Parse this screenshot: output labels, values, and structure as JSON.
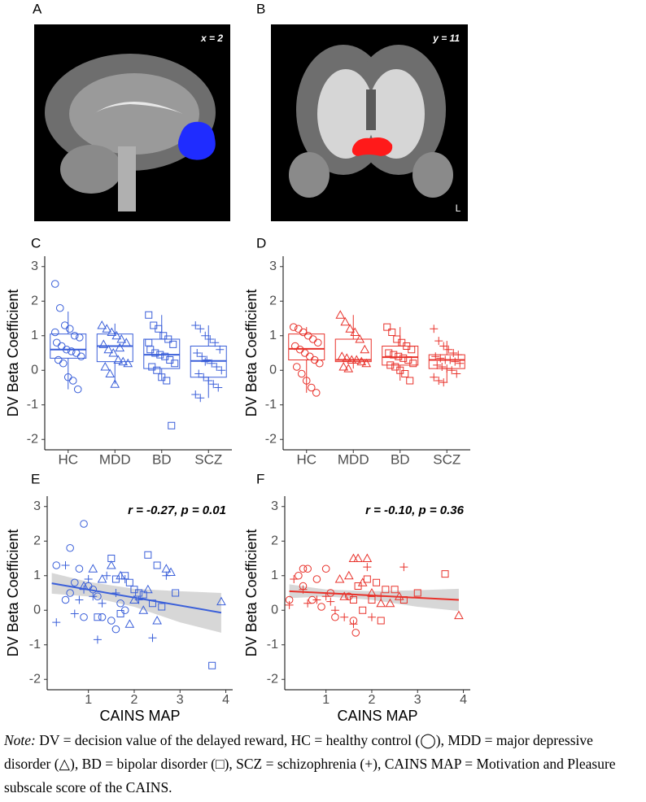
{
  "images": [
    {
      "panel": "A",
      "annotation": "x = 2"
    },
    {
      "panel": "B",
      "annotation": "y = 11",
      "side_label": "L"
    }
  ],
  "chart_data": [
    {
      "type": "box",
      "panel": "C",
      "color": "#3a5fd9",
      "ylabel": "DV Beta Coefficient",
      "categories": [
        "HC",
        "MDD",
        "BD",
        "SCZ"
      ],
      "markers": [
        "circle",
        "triangle",
        "square",
        "plus"
      ],
      "boxes": [
        {
          "whisker_low": -0.55,
          "q1": 0.35,
          "median": 0.6,
          "q3": 1.05,
          "whisker_high": 1.7
        },
        {
          "whisker_low": -0.4,
          "q1": 0.25,
          "median": 0.7,
          "q3": 1.05,
          "whisker_high": 1.35
        },
        {
          "whisker_low": -0.3,
          "q1": 0.05,
          "median": 0.45,
          "q3": 0.9,
          "whisker_high": 1.6
        },
        {
          "whisker_low": -0.8,
          "q1": -0.2,
          "median": 0.27,
          "q3": 0.7,
          "whisker_high": 1.3
        }
      ],
      "points": [
        [
          2.5,
          1.8,
          1.3,
          1.2,
          1.0,
          0.95,
          0.8,
          0.7,
          0.6,
          0.55,
          0.5,
          0.4,
          0.3,
          0.2,
          -0.2,
          -0.3,
          -0.55,
          1.1
        ],
        [
          1.3,
          1.2,
          1.1,
          1.0,
          0.9,
          0.8,
          0.75,
          0.6,
          0.5,
          0.3,
          0.25,
          0.2,
          0.1,
          -0.1,
          -0.4,
          0.65
        ],
        [
          1.6,
          1.3,
          1.2,
          1.0,
          0.9,
          0.75,
          0.6,
          0.5,
          0.45,
          0.4,
          0.3,
          0.2,
          0.1,
          0.0,
          -0.2,
          -0.3,
          -1.6,
          0.8
        ],
        [
          1.3,
          1.2,
          1.0,
          0.9,
          0.8,
          0.6,
          0.5,
          0.4,
          0.3,
          0.2,
          0.1,
          0.0,
          -0.1,
          -0.2,
          -0.3,
          -0.4,
          -0.5,
          -0.7,
          -0.8,
          0.25
        ]
      ],
      "ylim": [
        -2.3,
        3.3
      ],
      "yticks": [
        -2,
        -1,
        0,
        1,
        2,
        3
      ]
    },
    {
      "type": "box",
      "panel": "D",
      "color": "#e8322b",
      "ylabel": "DV Beta Coefficient",
      "categories": [
        "HC",
        "MDD",
        "BD",
        "SCZ"
      ],
      "markers": [
        "circle",
        "triangle",
        "square",
        "plus"
      ],
      "boxes": [
        {
          "whisker_low": -0.65,
          "q1": 0.3,
          "median": 0.62,
          "q3": 1.05,
          "whisker_high": 1.25
        },
        {
          "whisker_low": 0.05,
          "q1": 0.25,
          "median": 0.3,
          "q3": 0.9,
          "whisker_high": 1.6
        },
        {
          "whisker_low": -0.3,
          "q1": 0.15,
          "median": 0.38,
          "q3": 0.7,
          "whisker_high": 1.25
        },
        {
          "whisker_low": -0.35,
          "q1": 0.05,
          "median": 0.3,
          "q3": 0.45,
          "whisker_high": 0.85
        }
      ],
      "points": [
        [
          1.25,
          1.2,
          1.1,
          1.0,
          0.9,
          0.8,
          0.7,
          0.6,
          0.5,
          0.4,
          0.3,
          0.2,
          0.1,
          -0.1,
          -0.3,
          -0.5,
          -0.65
        ],
        [
          1.6,
          1.4,
          1.2,
          1.1,
          0.9,
          0.6,
          0.4,
          0.35,
          0.3,
          0.3,
          0.25,
          0.2,
          0.1,
          0.05
        ],
        [
          1.25,
          1.1,
          0.9,
          0.8,
          0.7,
          0.6,
          0.5,
          0.45,
          0.4,
          0.35,
          0.3,
          0.2,
          0.15,
          0.1,
          0.0,
          -0.1,
          -0.3
        ],
        [
          1.2,
          0.85,
          0.7,
          0.6,
          0.5,
          0.45,
          0.4,
          0.35,
          0.3,
          0.3,
          0.25,
          0.2,
          0.15,
          0.1,
          0.05,
          0.0,
          -0.1,
          -0.2,
          -0.3,
          -0.35
        ]
      ],
      "ylim": [
        -2.3,
        3.3
      ],
      "yticks": [
        -2,
        -1,
        0,
        1,
        2,
        3
      ]
    },
    {
      "type": "scatter",
      "panel": "E",
      "color": "#3a5fd9",
      "ylabel": "DV Beta Coefficient",
      "xlabel": "CAINS MAP",
      "annotation": "r = -0.27, p = 0.01",
      "series": [
        {
          "marker": "circle",
          "x": [
            0.3,
            0.5,
            0.6,
            0.7,
            0.8,
            0.9,
            1.0,
            1.1,
            1.2,
            1.3,
            1.5,
            1.6,
            1.7,
            1.8,
            0.9,
            0.6
          ],
          "values": [
            1.3,
            0.3,
            1.8,
            0.8,
            1.2,
            2.5,
            0.7,
            0.6,
            0.4,
            -0.2,
            -0.3,
            -0.55,
            0.2,
            0.0,
            -0.2,
            0.5
          ]
        },
        {
          "marker": "triangle",
          "x": [
            0.9,
            1.1,
            1.3,
            1.5,
            1.7,
            2.0,
            2.2,
            2.5,
            2.7,
            2.8,
            3.9,
            2.3,
            1.9
          ],
          "values": [
            0.7,
            1.2,
            0.9,
            1.3,
            1.0,
            0.3,
            0.0,
            -0.3,
            1.2,
            1.1,
            0.25,
            0.6,
            -0.4
          ]
        },
        {
          "marker": "square",
          "x": [
            1.5,
            1.6,
            1.8,
            1.9,
            2.0,
            2.1,
            2.3,
            2.4,
            2.5,
            2.6,
            2.9,
            3.7,
            1.7,
            2.2,
            1.2
          ],
          "values": [
            1.5,
            0.9,
            1.0,
            0.8,
            0.6,
            0.5,
            1.6,
            0.2,
            1.3,
            0.1,
            0.5,
            -1.6,
            -0.1,
            0.45,
            -0.2
          ]
        },
        {
          "marker": "plus",
          "x": [
            0.3,
            0.5,
            0.7,
            0.8,
            1.0,
            1.1,
            1.2,
            1.4,
            1.6,
            1.8,
            2.1,
            2.4,
            2.7,
            1.3,
            0.9
          ],
          "values": [
            -0.35,
            1.3,
            -0.1,
            0.3,
            0.9,
            0.4,
            -0.85,
            1.0,
            0.5,
            0.9,
            0.3,
            -0.8,
            1.0,
            0.2,
            0.6
          ]
        }
      ],
      "fit": {
        "x": [
          0.2,
          3.9
        ],
        "values": [
          0.78,
          -0.07
        ]
      },
      "band": {
        "x": [
          0.2,
          1,
          2,
          3,
          3.9
        ],
        "upper": [
          1.08,
          0.82,
          0.62,
          0.55,
          0.5
        ],
        "lower": [
          0.48,
          0.4,
          0.1,
          -0.35,
          -0.65
        ]
      },
      "xlim": [
        0.1,
        4.15
      ],
      "xticks": [
        1,
        2,
        3,
        4
      ],
      "ylim": [
        -2.3,
        3.3
      ],
      "yticks": [
        -2,
        -1,
        0,
        1,
        2,
        3
      ]
    },
    {
      "type": "scatter",
      "panel": "F",
      "color": "#e8322b",
      "ylabel": "DV Beta Coefficient",
      "xlabel": "CAINS MAP",
      "annotation": "r = -0.10, p = 0.36",
      "series": [
        {
          "marker": "circle",
          "x": [
            0.2,
            0.5,
            0.5,
            0.6,
            0.7,
            0.8,
            1.0,
            1.1,
            1.2,
            1.5,
            1.6,
            1.65,
            0.4,
            0.9
          ],
          "values": [
            0.3,
            1.2,
            0.7,
            1.2,
            0.3,
            0.9,
            1.2,
            0.5,
            -0.2,
            0.4,
            -0.3,
            -0.65,
            1.0,
            0.1
          ]
        },
        {
          "marker": "triangle",
          "x": [
            1.3,
            1.4,
            1.6,
            1.7,
            1.8,
            2.0,
            2.2,
            2.4,
            2.6,
            3.9,
            1.5,
            1.9
          ],
          "values": [
            0.9,
            0.4,
            1.5,
            1.5,
            0.8,
            0.5,
            0.2,
            0.2,
            0.4,
            -0.15,
            1.0,
            1.5
          ]
        },
        {
          "marker": "square",
          "x": [
            1.6,
            1.8,
            1.9,
            2.0,
            2.1,
            2.3,
            2.5,
            2.7,
            3.0,
            3.6,
            2.2,
            1.7
          ],
          "values": [
            0.3,
            0.0,
            0.9,
            0.3,
            0.8,
            0.6,
            0.6,
            0.3,
            0.5,
            1.05,
            -0.3,
            0.7
          ]
        },
        {
          "marker": "plus",
          "x": [
            0.2,
            0.3,
            0.6,
            0.8,
            1.0,
            1.2,
            1.4,
            1.6,
            1.9,
            2.0,
            2.2,
            2.7,
            1.1,
            0.5
          ],
          "values": [
            0.15,
            0.9,
            0.2,
            0.3,
            0.4,
            0.0,
            -0.2,
            -0.4,
            1.25,
            -0.2,
            0.4,
            1.25,
            0.25,
            0.6
          ]
        }
      ],
      "fit": {
        "x": [
          0.2,
          3.9
        ],
        "values": [
          0.55,
          0.3
        ]
      },
      "band": {
        "x": [
          0.2,
          1,
          2,
          3,
          3.9
        ],
        "upper": [
          0.75,
          0.6,
          0.55,
          0.58,
          0.62
        ],
        "lower": [
          0.35,
          0.4,
          0.3,
          0.1,
          -0.02
        ]
      },
      "xlim": [
        0.1,
        4.15
      ],
      "xticks": [
        1,
        2,
        3,
        4
      ],
      "ylim": [
        -2.3,
        3.3
      ],
      "yticks": [
        -2,
        -1,
        0,
        1,
        2,
        3
      ]
    }
  ],
  "note": {
    "label": "Note:",
    "text": " DV = decision value of the delayed reward, HC = healthy control (◯), MDD = major depressive disorder (△), BD = bipolar disorder (□), SCZ = schizophrenia (+), CAINS MAP = Motivation and Pleasure subscale score of the CAINS."
  }
}
